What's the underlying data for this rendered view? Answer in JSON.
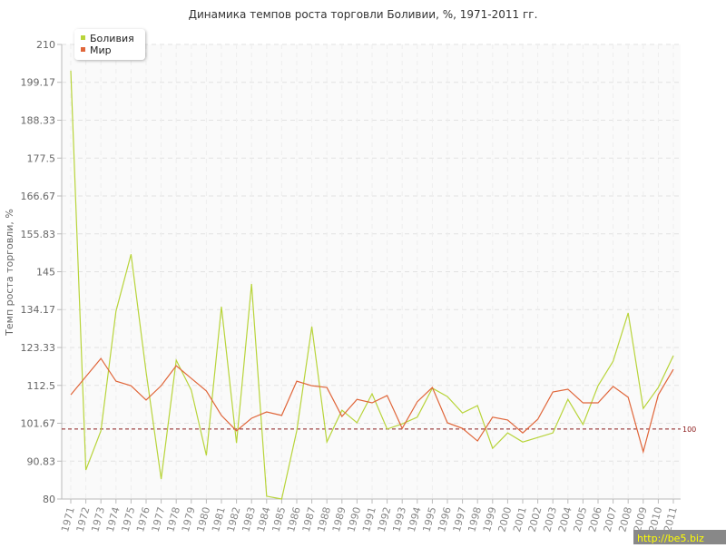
{
  "chart_data": {
    "type": "line",
    "title": "Динамика темпов роста торговли Боливии, %, 1971-2011 гг.",
    "y_label": "Темп роста торговли, %",
    "categories": [
      "1971",
      "1972",
      "1973",
      "1974",
      "1975",
      "1976",
      "1977",
      "1978",
      "1979",
      "1980",
      "1981",
      "1982",
      "1983",
      "1984",
      "1985",
      "1986",
      "1987",
      "1988",
      "1989",
      "1990",
      "1991",
      "1992",
      "1993",
      "1994",
      "1995",
      "1996",
      "1997",
      "1998",
      "1999",
      "2000",
      "2001",
      "2002",
      "2003",
      "2004",
      "2005",
      "2006",
      "2007",
      "2008",
      "2009",
      "2010",
      "2011"
    ],
    "series": [
      {
        "name": "Боливия",
        "color": "#b8d43a",
        "values": [
          202.5,
          88.3,
          99.5,
          133.7,
          150,
          116.3,
          85.7,
          119.7,
          111.1,
          92.5,
          135,
          96,
          141.5,
          80.8,
          80,
          99.5,
          129.3,
          96.3,
          105.4,
          101.8,
          110.1,
          100,
          101.5,
          103.4,
          111.7,
          109.3,
          104.6,
          106.7,
          94.5,
          98.9,
          96.3,
          97.6,
          98.9,
          108.5,
          101.3,
          112.4,
          119.4,
          133.2,
          105.9,
          111.9,
          121
        ]
      },
      {
        "name": "Мир",
        "color": "#e0663a",
        "values": [
          109.8,
          115,
          120.2,
          113.7,
          112.4,
          108.3,
          112.4,
          118.1,
          114.5,
          110.9,
          103.9,
          99.5,
          103.1,
          104.9,
          103.9,
          113.7,
          112.4,
          111.9,
          103.6,
          108.5,
          107.5,
          109.6,
          100.2,
          107.8,
          111.9,
          101.8,
          100.2,
          96.6,
          103.4,
          102.6,
          98.9,
          102.8,
          110.6,
          111.4,
          107.5,
          107.5,
          112.2,
          109.1,
          93.5,
          109.8,
          117.1
        ]
      }
    ],
    "ylim": [
      80,
      210
    ],
    "yticks": [
      80,
      90.83,
      101.67,
      112.5,
      123.33,
      134.17,
      145,
      155.83,
      166.67,
      177.5,
      188.33,
      199.17,
      210
    ],
    "grid": true,
    "legend": "top-left",
    "reference_line": {
      "value": 100,
      "color": "#8b1a1a"
    },
    "watermark": "http://be5.biz"
  }
}
